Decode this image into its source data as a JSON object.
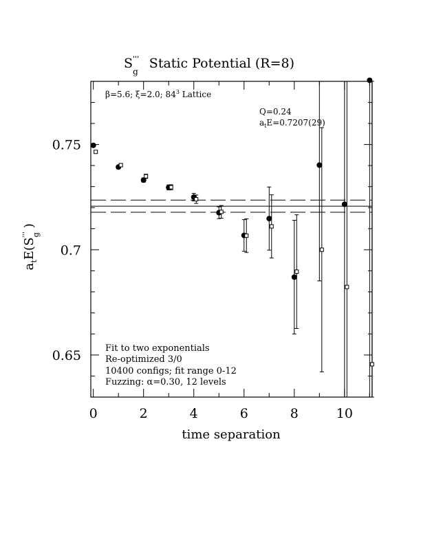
{
  "chart_data": {
    "type": "scatter",
    "title_main": "S",
    "title_sup": "'''",
    "title_sub": "g",
    "title_rest": "Static Potential (R=8)",
    "lattice_info": "β=5.6; ξ=2.0; 8⁴³ Lattice",
    "lattice_info_parts": {
      "pre": "β=5.6; ξ=2.0; 8",
      "sup": "3",
      "post": " Lattice",
      "mid": "4"
    },
    "fit_q": "Q=0.24",
    "fit_energy": "E=0.7207(29)",
    "fit_energy_prefix": "a",
    "fit_energy_sub": "t",
    "notes": [
      "Fit to two exponentials",
      "Re-optimized 3/0",
      "10400 configs; fit range 0-12",
      "Fuzzing: α=0.30, 12 levels"
    ],
    "xlabel": "time separation",
    "ylabel_prefix": "a",
    "ylabel_sub_t": "t",
    "ylabel_mid": "E(S",
    "ylabel_sup": "'''",
    "ylabel_sub_g": "g",
    "ylabel_end": ")",
    "x_ticks": [
      "0",
      "2",
      "4",
      "6",
      "8",
      "10"
    ],
    "x_tick_values": [
      0,
      2,
      4,
      6,
      8,
      10
    ],
    "y_ticks": [
      "0.65",
      "0.7",
      "0.75"
    ],
    "y_tick_values": [
      0.65,
      0.7,
      0.75
    ],
    "xlim": [
      -0.1,
      11.1
    ],
    "ylim": [
      0.63,
      0.78
    ],
    "fit_value": 0.7207,
    "fit_error": 0.0029,
    "series": [
      {
        "marker": "filled-circle",
        "points": [
          {
            "x": 0,
            "y": 0.7496,
            "err": 0.0005
          },
          {
            "x": 1,
            "y": 0.7393,
            "err": 0.0008
          },
          {
            "x": 2,
            "y": 0.7331,
            "err": 0.001
          },
          {
            "x": 3,
            "y": 0.7296,
            "err": 0.0012
          },
          {
            "x": 4,
            "y": 0.725,
            "err": 0.0018
          },
          {
            "x": 5,
            "y": 0.7176,
            "err": 0.0028
          },
          {
            "x": 6,
            "y": 0.7068,
            "err": 0.0075
          },
          {
            "x": 7,
            "y": 0.7148,
            "err": 0.015
          },
          {
            "x": 8,
            "y": 0.687,
            "err": 0.027
          },
          {
            "x": 9,
            "y": 0.7402,
            "err": 0.055
          },
          {
            "x": 10,
            "y": 0.7216,
            "err": 0.12
          },
          {
            "x": 11,
            "y": 0.7805,
            "err": 0.2
          }
        ]
      },
      {
        "marker": "open-square",
        "points": [
          {
            "x": 0,
            "y": 0.7465,
            "err": 0.0005
          },
          {
            "x": 1,
            "y": 0.7402,
            "err": 0.0008
          },
          {
            "x": 2,
            "y": 0.7349,
            "err": 0.001
          },
          {
            "x": 3,
            "y": 0.7297,
            "err": 0.0012
          },
          {
            "x": 4,
            "y": 0.724,
            "err": 0.002
          },
          {
            "x": 5,
            "y": 0.718,
            "err": 0.003
          },
          {
            "x": 6,
            "y": 0.7067,
            "err": 0.008
          },
          {
            "x": 7,
            "y": 0.7111,
            "err": 0.015
          },
          {
            "x": 8,
            "y": 0.6896,
            "err": 0.027
          },
          {
            "x": 9,
            "y": 0.7,
            "err": 0.058
          },
          {
            "x": 10,
            "y": 0.6823,
            "err": 0.13
          },
          {
            "x": 11,
            "y": 0.6456,
            "err": 0.22
          }
        ]
      }
    ]
  }
}
